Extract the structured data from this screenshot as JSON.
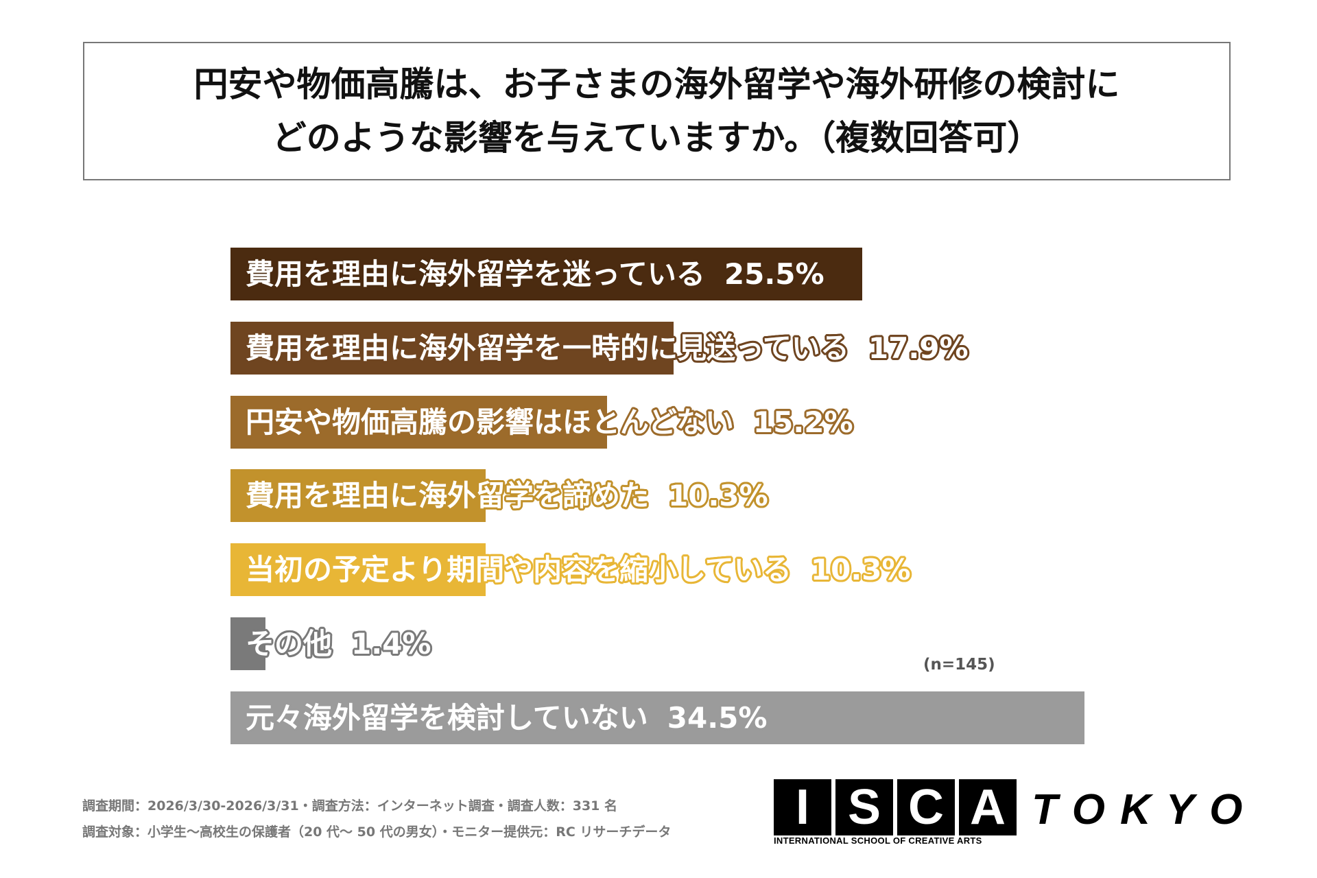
{
  "chart_data": {
    "type": "bar",
    "orientation": "horizontal",
    "title": [
      "円安や物価高騰は、お子さまの海外留学や海外研修の検討に",
      "どのような影響を与えていますか。（複数回答可）"
    ],
    "categories": [
      "費用を理由に海外留学を迷っている",
      "費用を理由に海外留学を一時的に見送っている",
      "円安や物価高騰の影響はほとんどない",
      "費用を理由に海外留学を諦めた",
      "当初の予定より期間や内容を縮小している",
      "その他",
      "元々海外留学を検討していない"
    ],
    "values": [
      25.5,
      17.9,
      15.2,
      10.3,
      10.3,
      1.4,
      34.5
    ],
    "value_labels": [
      "25.5%",
      "17.9%",
      "15.2%",
      "10.3%",
      "10.3%",
      "1.4%",
      "34.5%"
    ],
    "colors": [
      "#4b2b10",
      "#6f4520",
      "#9c6b2b",
      "#c2922c",
      "#e8b636",
      "#7a7a7a",
      "#9b9b9b"
    ],
    "unit": "%",
    "sample_note": "(n=145)",
    "grid": false,
    "legend": "none"
  },
  "footer": {
    "line1": "調査期間：2026/3/30-2026/3/31・調査方法：インターネット調査・調査人数：331 名",
    "line2": "調査対象：小学生～高校生の保護者（20 代～ 50 代の男女）・モニター提供元：RC リサーチデータ"
  },
  "logo": {
    "letters": [
      "I",
      "S",
      "C",
      "A"
    ],
    "city": "TOKYO",
    "caption": "INTERNATIONAL SCHOOL OF CREATIVE ARTS"
  }
}
